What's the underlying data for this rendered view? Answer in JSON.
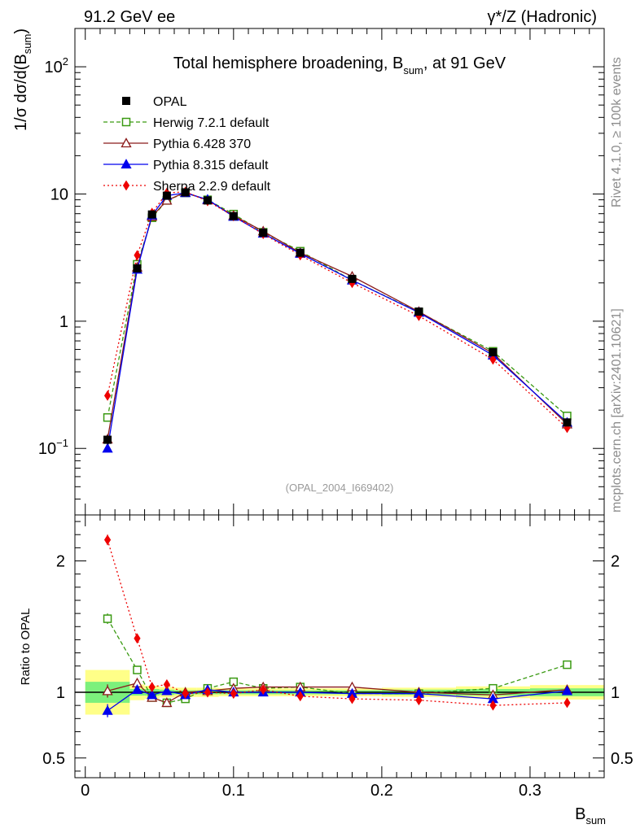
{
  "header": {
    "left": "91.2 GeV ee",
    "right": "γ*/Z (Hadronic)"
  },
  "side_labels": {
    "rivet": "Rivet 4.1.0, ≥ 100k events",
    "mcplots": "mcplots.cern.ch [arXiv:2401.10621]"
  },
  "chart_data": [
    {
      "type": "line",
      "panel": "main",
      "title": "Total hemisphere broadening, B",
      "title_sub": "sum",
      "title_suffix": ", at 91 GeV",
      "analysis_tag": "(OPAL_2004_I669402)",
      "ylabel": "1/σ  dσ/d(B",
      "ylabel_sub": "sum",
      "ylabel_suffix": ")",
      "yscale": "log",
      "xlim": [
        -0.007,
        0.35
      ],
      "ylim": [
        0.03,
        200
      ],
      "y_tick_labels": [
        {
          "label": "10",
          "sup": "−1",
          "value": 0.1
        },
        {
          "label": "1",
          "sup": "",
          "value": 1
        },
        {
          "label": "10",
          "sup": "",
          "value": 10
        },
        {
          "label": "10",
          "sup": "2",
          "value": 100
        }
      ],
      "legend_position": "top-left",
      "x": [
        0.015,
        0.035,
        0.045,
        0.055,
        0.0675,
        0.0825,
        0.1,
        0.12,
        0.145,
        0.18,
        0.225,
        0.275,
        0.325
      ],
      "data": {
        "name": "OPAL",
        "values": [
          0.117,
          2.6,
          6.9,
          9.7,
          10.3,
          8.9,
          6.7,
          4.95,
          3.45,
          2.15,
          1.19,
          0.57,
          0.16
        ],
        "errors": [
          0.01,
          0.08,
          0.12,
          0.15,
          0.15,
          0.12,
          0.1,
          0.07,
          0.05,
          0.03,
          0.02,
          0.01,
          0.005
        ],
        "color": "#000000"
      },
      "series": [
        {
          "name": "Herwig 7.2.1 default",
          "values": [
            0.175,
            2.8,
            6.5,
            8.9,
            10.2,
            9.0,
            6.95,
            5.0,
            3.55,
            2.1,
            1.18,
            0.58,
            0.18
          ],
          "color": "#3a9a12",
          "dash": "5,3",
          "marker": "square-open"
        },
        {
          "name": "Pythia 6.428 370",
          "values": [
            0.118,
            2.65,
            6.65,
            8.9,
            10.3,
            8.95,
            6.75,
            5.1,
            3.45,
            2.25,
            1.19,
            0.56,
            0.155
          ],
          "color": "#8b1a1a",
          "dash": "",
          "marker": "triangle-open"
        },
        {
          "name": "Pythia 8.315 default",
          "values": [
            0.1,
            2.55,
            6.8,
            9.7,
            10.2,
            9.05,
            6.65,
            4.9,
            3.4,
            2.1,
            1.17,
            0.54,
            0.16
          ],
          "color": "#0000ee",
          "dash": "",
          "marker": "triangle-filled"
        },
        {
          "name": "Sherpa 2.2.9 default",
          "values": [
            0.26,
            3.3,
            7.1,
            10.2,
            10.4,
            8.8,
            6.7,
            4.85,
            3.3,
            2.0,
            1.1,
            0.5,
            0.145
          ],
          "color": "#ee0000",
          "dash": "2,3",
          "marker": "diamond-filled"
        }
      ]
    },
    {
      "type": "line",
      "panel": "ratio",
      "ylabel": "Ratio to OPAL",
      "xlabel": "B",
      "xlabel_sub": "sum",
      "xlim": [
        -0.007,
        0.35
      ],
      "ylim": [
        0.35,
        2.35
      ],
      "x_ticks": [
        0.0,
        0.1,
        0.2,
        0.3
      ],
      "x_tick_labels": [
        "0",
        "0.1",
        "0.2",
        "0.3"
      ],
      "y_ticks": [
        0.5,
        1,
        2
      ],
      "y_tick_labels": [
        "0.5",
        "1",
        "2"
      ],
      "bins": [
        [
          0.0,
          0.03
        ],
        [
          0.03,
          0.04
        ],
        [
          0.04,
          0.05
        ],
        [
          0.05,
          0.06
        ],
        [
          0.06,
          0.075
        ],
        [
          0.075,
          0.09
        ],
        [
          0.09,
          0.11
        ],
        [
          0.11,
          0.13
        ],
        [
          0.13,
          0.16
        ],
        [
          0.16,
          0.2
        ],
        [
          0.2,
          0.25
        ],
        [
          0.25,
          0.3
        ],
        [
          0.3,
          0.35
        ]
      ],
      "band_stat": [
        0.08,
        0.025,
        0.025,
        0.02,
        0.015,
        0.015,
        0.015,
        0.015,
        0.015,
        0.015,
        0.02,
        0.025,
        0.03
      ],
      "band_total": [
        0.17,
        0.06,
        0.05,
        0.04,
        0.035,
        0.035,
        0.03,
        0.03,
        0.03,
        0.03,
        0.035,
        0.045,
        0.055
      ],
      "x": [
        0.015,
        0.035,
        0.045,
        0.055,
        0.0675,
        0.0825,
        0.1,
        0.12,
        0.145,
        0.18,
        0.225,
        0.275,
        0.325
      ],
      "series": [
        {
          "name": "Herwig 7.2.1 default",
          "values": [
            1.56,
            1.17,
            0.96,
            0.92,
            0.95,
            1.03,
            1.08,
            1.03,
            1.04,
            0.99,
            0.99,
            1.03,
            1.21
          ],
          "errors": [
            0.04,
            0.02,
            0.01,
            0.01,
            0.01,
            0.01,
            0.01,
            0.01,
            0.01,
            0.01,
            0.01,
            0.01,
            0.01
          ],
          "color": "#3a9a12",
          "dash": "5,3",
          "marker": "square-open"
        },
        {
          "name": "Pythia 6.428 370",
          "values": [
            1.01,
            1.07,
            0.96,
            0.92,
            1.0,
            1.01,
            1.03,
            1.04,
            1.04,
            1.04,
            1.0,
            0.98,
            1.02
          ],
          "errors": [
            0.05,
            0.02,
            0.01,
            0.01,
            0.01,
            0.01,
            0.01,
            0.01,
            0.01,
            0.01,
            0.01,
            0.01,
            0.02
          ],
          "color": "#8b1a1a",
          "dash": "",
          "marker": "triangle-open"
        },
        {
          "name": "Pythia 8.315 default",
          "values": [
            0.86,
            1.02,
            0.98,
            1.01,
            0.98,
            1.02,
            1.0,
            1.0,
            1.0,
            0.99,
            0.99,
            0.95,
            1.01
          ],
          "errors": [
            0.05,
            0.02,
            0.01,
            0.01,
            0.01,
            0.01,
            0.01,
            0.01,
            0.01,
            0.01,
            0.01,
            0.01,
            0.02
          ],
          "color": "#0000ee",
          "dash": "",
          "marker": "triangle-filled"
        },
        {
          "name": "Sherpa 2.2.9 default",
          "values": [
            2.16,
            1.41,
            1.04,
            1.06,
            0.99,
            1.0,
            0.99,
            1.02,
            0.97,
            0.95,
            0.94,
            0.9,
            0.92
          ],
          "errors": [
            0.04,
            0.02,
            0.01,
            0.01,
            0.01,
            0.01,
            0.01,
            0.01,
            0.01,
            0.01,
            0.01,
            0.01,
            0.02
          ],
          "color": "#ee0000",
          "dash": "2,3",
          "marker": "diamond-filled"
        }
      ]
    }
  ]
}
